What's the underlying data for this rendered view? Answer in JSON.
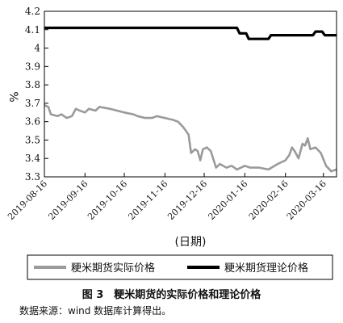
{
  "chart_data": {
    "type": "line",
    "ylabel": "%",
    "xlabel": "(日期)",
    "ylim": [
      3.3,
      4.2
    ],
    "yticks": [
      "4.2",
      "4.1",
      "4",
      "3.9",
      "3.8",
      "3.7",
      "3.6",
      "3.5",
      "3.4",
      "3.3"
    ],
    "xticks": [
      "2019-08-16",
      "2019-09-16",
      "2019-10-16",
      "2019-11-16",
      "2019-12-16",
      "2020-01-16",
      "2020-02-16",
      "2020-03-16"
    ],
    "xrange": [
      "2019-08-16",
      "2020-03-26"
    ],
    "grid": false,
    "legend_position": "bottom",
    "series": [
      {
        "name": "粳米期货实际价格",
        "color": "#9a9a9a",
        "points": [
          [
            "2019-08-16",
            3.69
          ],
          [
            "2019-08-19",
            3.68
          ],
          [
            "2019-08-21",
            3.64
          ],
          [
            "2019-08-26",
            3.63
          ],
          [
            "2019-08-29",
            3.64
          ],
          [
            "2019-09-02",
            3.62
          ],
          [
            "2019-09-06",
            3.63
          ],
          [
            "2019-09-09",
            3.67
          ],
          [
            "2019-09-12",
            3.66
          ],
          [
            "2019-09-16",
            3.65
          ],
          [
            "2019-09-19",
            3.67
          ],
          [
            "2019-09-24",
            3.66
          ],
          [
            "2019-09-27",
            3.68
          ],
          [
            "2019-10-05",
            3.67
          ],
          [
            "2019-10-16",
            3.65
          ],
          [
            "2019-10-23",
            3.64
          ],
          [
            "2019-10-26",
            3.63
          ],
          [
            "2019-11-01",
            3.62
          ],
          [
            "2019-11-06",
            3.62
          ],
          [
            "2019-11-10",
            3.63
          ],
          [
            "2019-11-16",
            3.62
          ],
          [
            "2019-11-22",
            3.61
          ],
          [
            "2019-11-26",
            3.6
          ],
          [
            "2019-11-30",
            3.57
          ],
          [
            "2019-12-04",
            3.53
          ],
          [
            "2019-12-06",
            3.43
          ],
          [
            "2019-12-09",
            3.45
          ],
          [
            "2019-12-11",
            3.44
          ],
          [
            "2019-12-13",
            3.39
          ],
          [
            "2019-12-15",
            3.45
          ],
          [
            "2019-12-18",
            3.46
          ],
          [
            "2019-12-21",
            3.44
          ],
          [
            "2019-12-25",
            3.35
          ],
          [
            "2019-12-28",
            3.37
          ],
          [
            "2020-01-02",
            3.35
          ],
          [
            "2020-01-06",
            3.36
          ],
          [
            "2020-01-10",
            3.34
          ],
          [
            "2020-01-16",
            3.36
          ],
          [
            "2020-01-20",
            3.35
          ],
          [
            "2020-01-27",
            3.35
          ],
          [
            "2020-02-03",
            3.34
          ],
          [
            "2020-02-10",
            3.37
          ],
          [
            "2020-02-16",
            3.39
          ],
          [
            "2020-02-19",
            3.42
          ],
          [
            "2020-02-21",
            3.46
          ],
          [
            "2020-02-23",
            3.44
          ],
          [
            "2020-02-26",
            3.4
          ],
          [
            "2020-02-29",
            3.48
          ],
          [
            "2020-03-02",
            3.47
          ],
          [
            "2020-03-04",
            3.51
          ],
          [
            "2020-03-06",
            3.45
          ],
          [
            "2020-03-10",
            3.46
          ],
          [
            "2020-03-14",
            3.43
          ],
          [
            "2020-03-18",
            3.36
          ],
          [
            "2020-03-22",
            3.33
          ],
          [
            "2020-03-26",
            3.34
          ]
        ]
      },
      {
        "name": "粳米期货理论价格",
        "color": "#000000",
        "points": [
          [
            "2019-08-16",
            4.11
          ],
          [
            "2020-01-10",
            4.11
          ],
          [
            "2020-01-12",
            4.08
          ],
          [
            "2020-01-17",
            4.08
          ],
          [
            "2020-01-19",
            4.05
          ],
          [
            "2020-02-03",
            4.05
          ],
          [
            "2020-02-05",
            4.07
          ],
          [
            "2020-03-08",
            4.07
          ],
          [
            "2020-03-10",
            4.09
          ],
          [
            "2020-03-15",
            4.09
          ],
          [
            "2020-03-17",
            4.07
          ],
          [
            "2020-03-26",
            4.07
          ]
        ]
      }
    ]
  },
  "figure": {
    "caption": "图 3　粳米期货的实际价格和理论价格",
    "source": "数据来源：wind 数据库计算得出。"
  }
}
